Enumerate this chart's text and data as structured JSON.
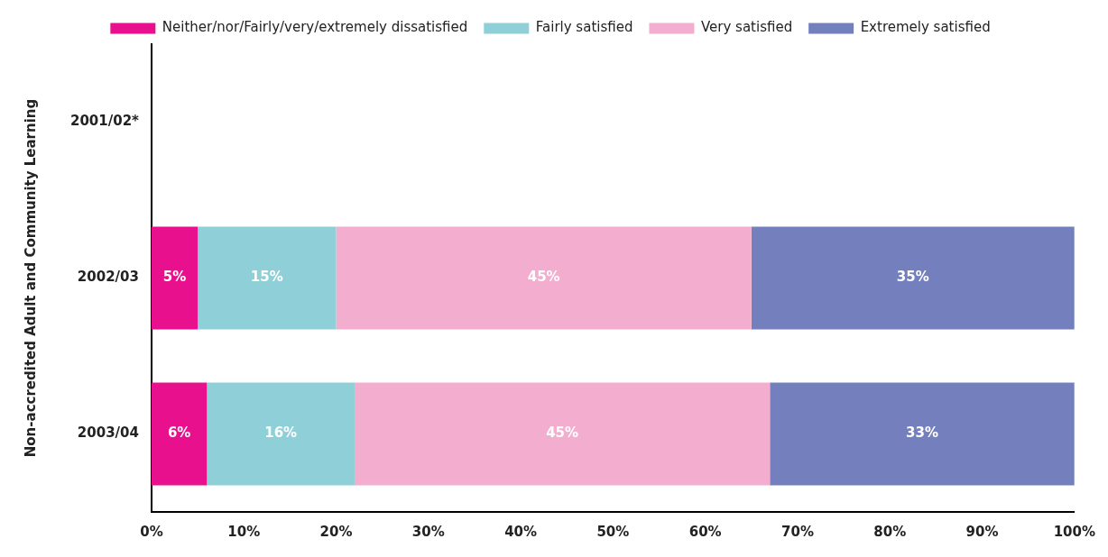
{
  "chart_data": {
    "type": "bar",
    "orientation": "horizontal",
    "stacked": true,
    "ylabel": "Non-accredited Adult and Community Learning",
    "categories": [
      "2001/02*",
      "2002/03",
      "2003/04"
    ],
    "series": [
      {
        "name": "Neither/nor/Fairly/very/extremely dissatisfied",
        "color": "#e8108c",
        "values": [
          null,
          5,
          6
        ],
        "value_labels": [
          null,
          "5%",
          "6%"
        ]
      },
      {
        "name": "Fairly satisfied",
        "color": "#8fd0d8",
        "values": [
          null,
          15,
          16
        ],
        "value_labels": [
          null,
          "15%",
          "16%"
        ]
      },
      {
        "name": "Very satisfied",
        "color": "#f3aecf",
        "values": [
          null,
          45,
          45
        ],
        "value_labels": [
          null,
          "45%",
          "45%"
        ]
      },
      {
        "name": "Extremely satisfied",
        "color": "#7480bd",
        "values": [
          null,
          35,
          33
        ],
        "value_labels": [
          null,
          "35%",
          "33%"
        ]
      }
    ],
    "xlim": [
      0,
      100
    ],
    "xticks": [
      {
        "value": 0,
        "label": "0%"
      },
      {
        "value": 10,
        "label": "10%"
      },
      {
        "value": 20,
        "label": "20%"
      },
      {
        "value": 30,
        "label": "30%"
      },
      {
        "value": 40,
        "label": "40%"
      },
      {
        "value": 50,
        "label": "50%"
      },
      {
        "value": 60,
        "label": "60%"
      },
      {
        "value": 70,
        "label": "70%"
      },
      {
        "value": 80,
        "label": "80%"
      },
      {
        "value": 90,
        "label": "90%"
      },
      {
        "value": 100,
        "label": "100%"
      }
    ],
    "grid": false,
    "legend": "top"
  }
}
